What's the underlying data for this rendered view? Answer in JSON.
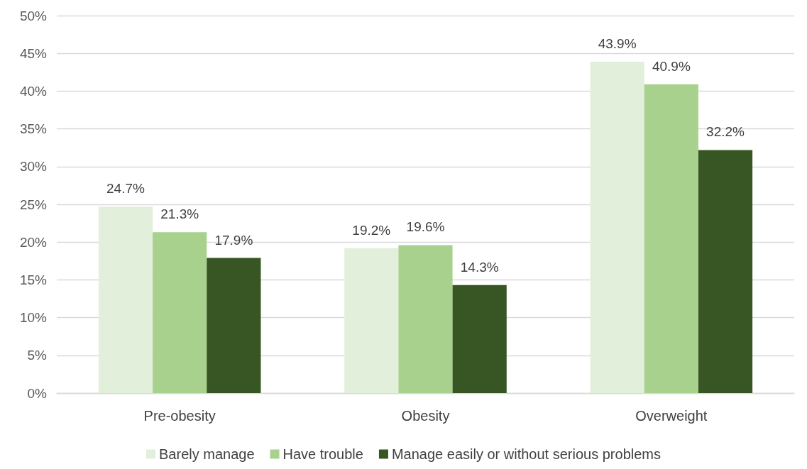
{
  "chart_data": {
    "type": "bar",
    "categories": [
      "Pre-obesity",
      "Obesity",
      "Overweight"
    ],
    "series": [
      {
        "name": "Barely manage",
        "color": "#e2efda",
        "values": [
          24.7,
          19.2,
          43.9
        ],
        "value_labels": [
          "24.7%",
          "19.2%",
          "43.9%"
        ]
      },
      {
        "name": "Have trouble",
        "color": "#a9d18e",
        "values": [
          21.3,
          19.6,
          40.9
        ],
        "value_labels": [
          "21.3%",
          "19.6%",
          "40.9%"
        ]
      },
      {
        "name": "Manage easily or without serious problems",
        "color": "#375623",
        "values": [
          17.9,
          14.3,
          32.2
        ],
        "value_labels": [
          "17.9%",
          "14.3%",
          "32.2%"
        ]
      }
    ],
    "ylim": [
      0,
      50
    ],
    "yticks": [
      {
        "value": 0,
        "label": "0%"
      },
      {
        "value": 5,
        "label": "5%"
      },
      {
        "value": 10,
        "label": "10%"
      },
      {
        "value": 15,
        "label": "15%"
      },
      {
        "value": 20,
        "label": "20%"
      },
      {
        "value": 25,
        "label": "25%"
      },
      {
        "value": 30,
        "label": "30%"
      },
      {
        "value": 35,
        "label": "35%"
      },
      {
        "value": 40,
        "label": "40%"
      },
      {
        "value": 45,
        "label": "45%"
      },
      {
        "value": 50,
        "label": "50%"
      }
    ],
    "grid": "y",
    "legend": "bottom"
  }
}
